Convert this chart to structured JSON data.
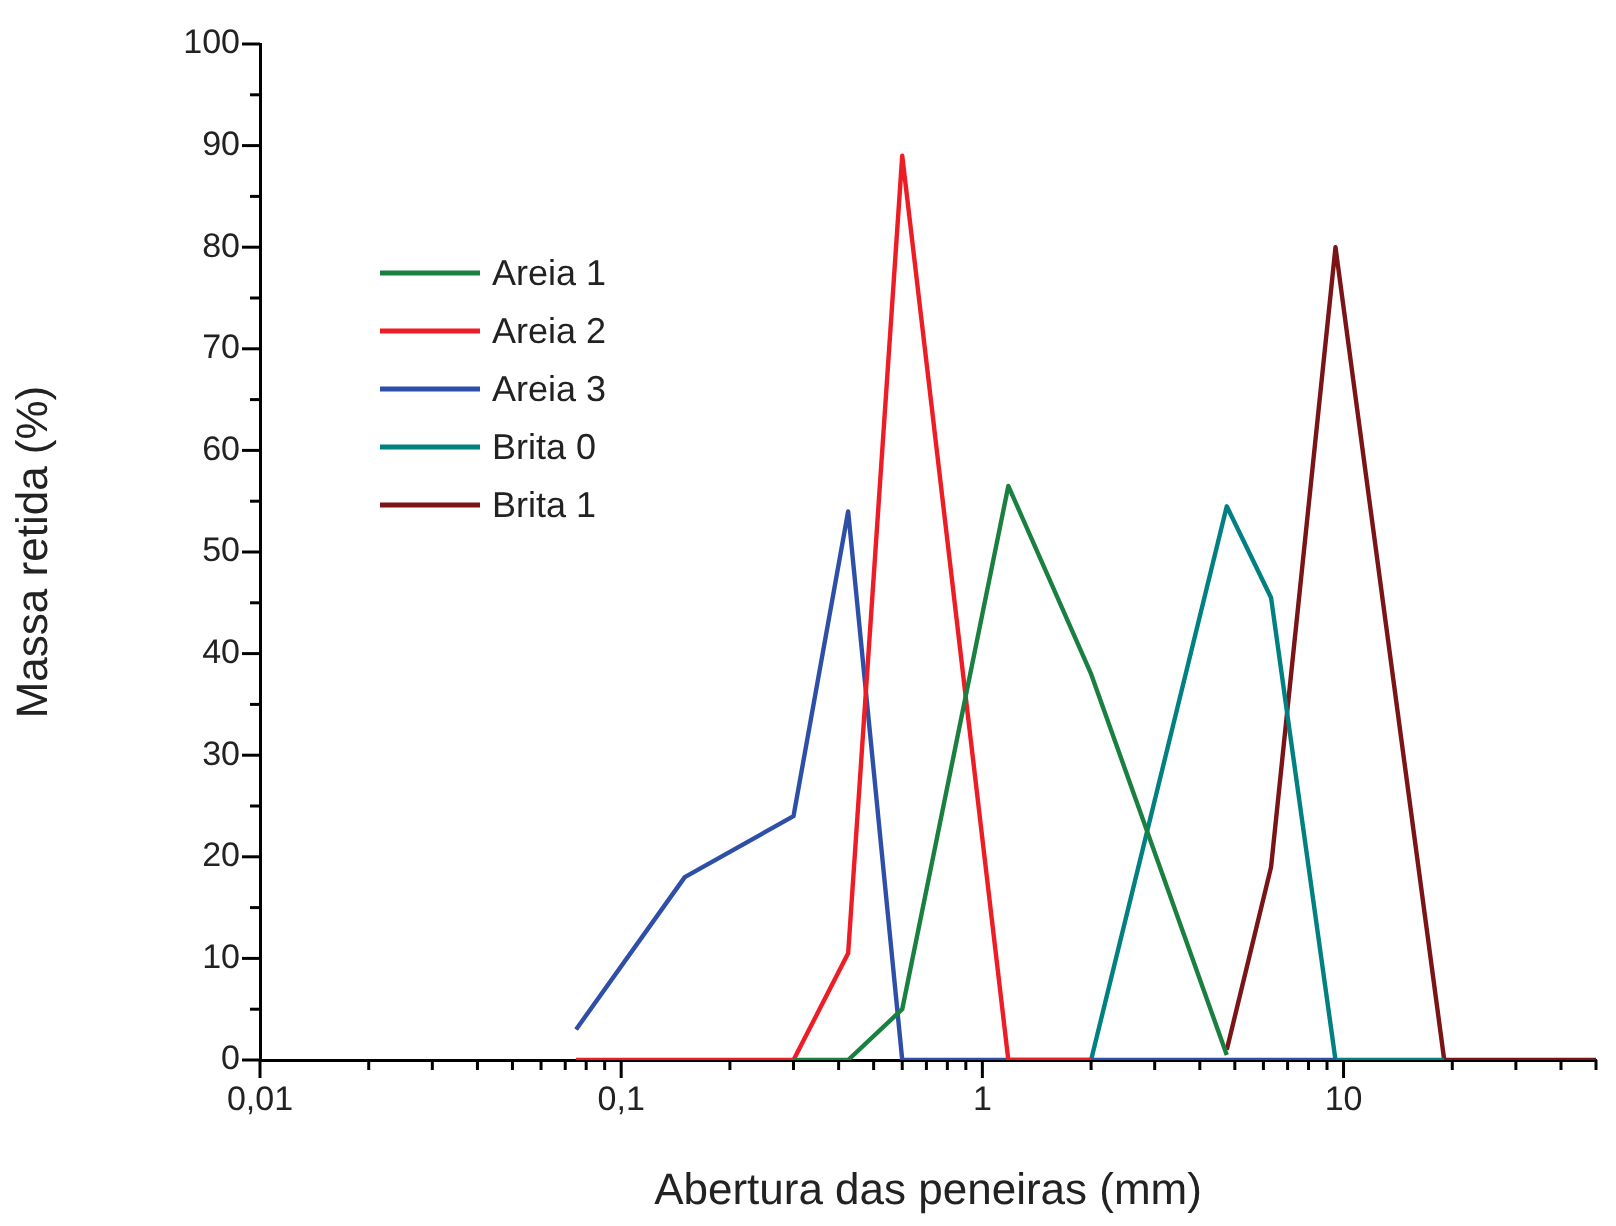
{
  "chart_data": {
    "type": "line",
    "xlabel": "Abertura das peneiras (mm)",
    "ylabel": "Massa retida (%)",
    "log": "x",
    "grid": false,
    "legend": "top left",
    "marker": "none",
    "line_style": "solid",
    "xlim": [
      0.01,
      50
    ],
    "ylim": [
      0,
      100
    ],
    "xticks": [
      {
        "value": 0.01,
        "label": "0,01"
      },
      {
        "value": 0.02,
        "label": null
      },
      {
        "value": 0.03,
        "label": null
      },
      {
        "value": 0.04,
        "label": null
      },
      {
        "value": 0.05,
        "label": null
      },
      {
        "value": 0.06,
        "label": null
      },
      {
        "value": 0.07,
        "label": null
      },
      {
        "value": 0.08,
        "label": null
      },
      {
        "value": 0.09,
        "label": null
      },
      {
        "value": 0.1,
        "label": "0,1"
      },
      {
        "value": 0.2,
        "label": null
      },
      {
        "value": 0.3,
        "label": null
      },
      {
        "value": 0.4,
        "label": null
      },
      {
        "value": 0.5,
        "label": null
      },
      {
        "value": 0.6,
        "label": null
      },
      {
        "value": 0.7,
        "label": null
      },
      {
        "value": 0.8,
        "label": null
      },
      {
        "value": 0.9,
        "label": null
      },
      {
        "value": 1,
        "label": "1"
      },
      {
        "value": 2,
        "label": null
      },
      {
        "value": 3,
        "label": null
      },
      {
        "value": 4,
        "label": null
      },
      {
        "value": 5,
        "label": null
      },
      {
        "value": 6,
        "label": null
      },
      {
        "value": 7,
        "label": null
      },
      {
        "value": 8,
        "label": null
      },
      {
        "value": 9,
        "label": null
      },
      {
        "value": 10,
        "label": "10"
      },
      {
        "value": 20,
        "label": null
      },
      {
        "value": 30,
        "label": null
      },
      {
        "value": 40,
        "label": null
      },
      {
        "value": 50,
        "label": null
      }
    ],
    "yticks": [
      0,
      {
        "value": 5,
        "label": null
      },
      10,
      {
        "value": 15,
        "label": null
      },
      20,
      {
        "value": 25,
        "label": null
      },
      30,
      {
        "value": 35,
        "label": null
      },
      40,
      {
        "value": 45,
        "label": null
      },
      50,
      {
        "value": 55,
        "label": null
      },
      60,
      {
        "value": 65,
        "label": null
      },
      70,
      {
        "value": 75,
        "label": null
      },
      80,
      {
        "value": 85,
        "label": null
      },
      90,
      {
        "value": 95,
        "label": null
      },
      100
    ],
    "series": [
      {
        "name": "Areia 1",
        "color": "#1a8040",
        "x": [
          0.3,
          0.425,
          0.6,
          1.18,
          2,
          4.75
        ],
        "values": [
          0,
          0,
          5,
          56.5,
          38,
          0.5
        ]
      },
      {
        "name": "Areia 2",
        "color": "#ee1c25",
        "x": [
          0.075,
          0.15,
          0.3,
          0.425,
          0.6,
          1.18,
          2
        ],
        "values": [
          0,
          0,
          0,
          10.5,
          89,
          0,
          0
        ]
      },
      {
        "name": "Areia 3",
        "color": "#2e4fa8",
        "x": [
          0.075,
          0.15,
          0.3,
          0.425,
          0.6,
          1.18,
          2,
          4.75,
          6.3,
          9.5
        ],
        "values": [
          3,
          18,
          24,
          54,
          0,
          0,
          0,
          0,
          0,
          0
        ]
      },
      {
        "name": "Brita 0",
        "color": "#008080",
        "x": [
          2,
          4.75,
          6.3,
          9.5,
          19
        ],
        "values": [
          0,
          54.5,
          45.5,
          0,
          0
        ]
      },
      {
        "name": "Brita 1",
        "color": "#7a1416",
        "x": [
          4.75,
          6.3,
          9.5,
          19,
          50
        ],
        "values": [
          1,
          19,
          80,
          0,
          0
        ]
      }
    ]
  }
}
